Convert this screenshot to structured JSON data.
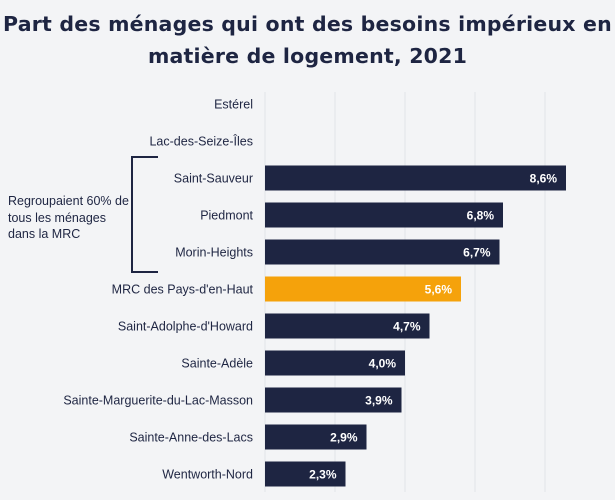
{
  "title": {
    "line1": "Part des ménages qui ont des besoins impérieux en",
    "line2": "matière de logement, 2021"
  },
  "group_annotation": {
    "line1": "Regroupaient 60% de",
    "line2": "tous les ménages",
    "line3": "dans la MRC"
  },
  "colors": {
    "bar": "#1e2542",
    "highlight": "#f5a20b",
    "text": "#1e2542",
    "background": "#f3f4f6"
  },
  "chart_data": {
    "type": "bar",
    "orientation": "horizontal",
    "title": "Part des ménages qui ont des besoins impérieux en matière de logement, 2021",
    "categories": [
      "Estérel",
      "Lac-des-Seize-Îles",
      "Saint-Sauveur",
      "Piedmont",
      "Morin-Heights",
      "MRC des Pays-d'en-Haut",
      "Saint-Adolphe-d'Howard",
      "Sainte-Adèle",
      "Sainte-Marguerite-du-Lac-Masson",
      "Sainte-Anne-des-Lacs",
      "Wentworth-Nord"
    ],
    "values": [
      null,
      null,
      8.6,
      6.8,
      6.7,
      5.6,
      4.7,
      4.0,
      3.9,
      2.9,
      2.3
    ],
    "value_labels": [
      "",
      "",
      "8,6%",
      "6,8%",
      "6,7%",
      "5,6%",
      "4,7%",
      "4,0%",
      "3,9%",
      "2,9%",
      "2,3%"
    ],
    "highlighted_category": "MRC des Pays-d'en-Haut",
    "bracketed_categories": [
      "Saint-Sauveur",
      "Piedmont",
      "Morin-Heights"
    ],
    "xlim": [
      0,
      10
    ],
    "grid": true
  }
}
